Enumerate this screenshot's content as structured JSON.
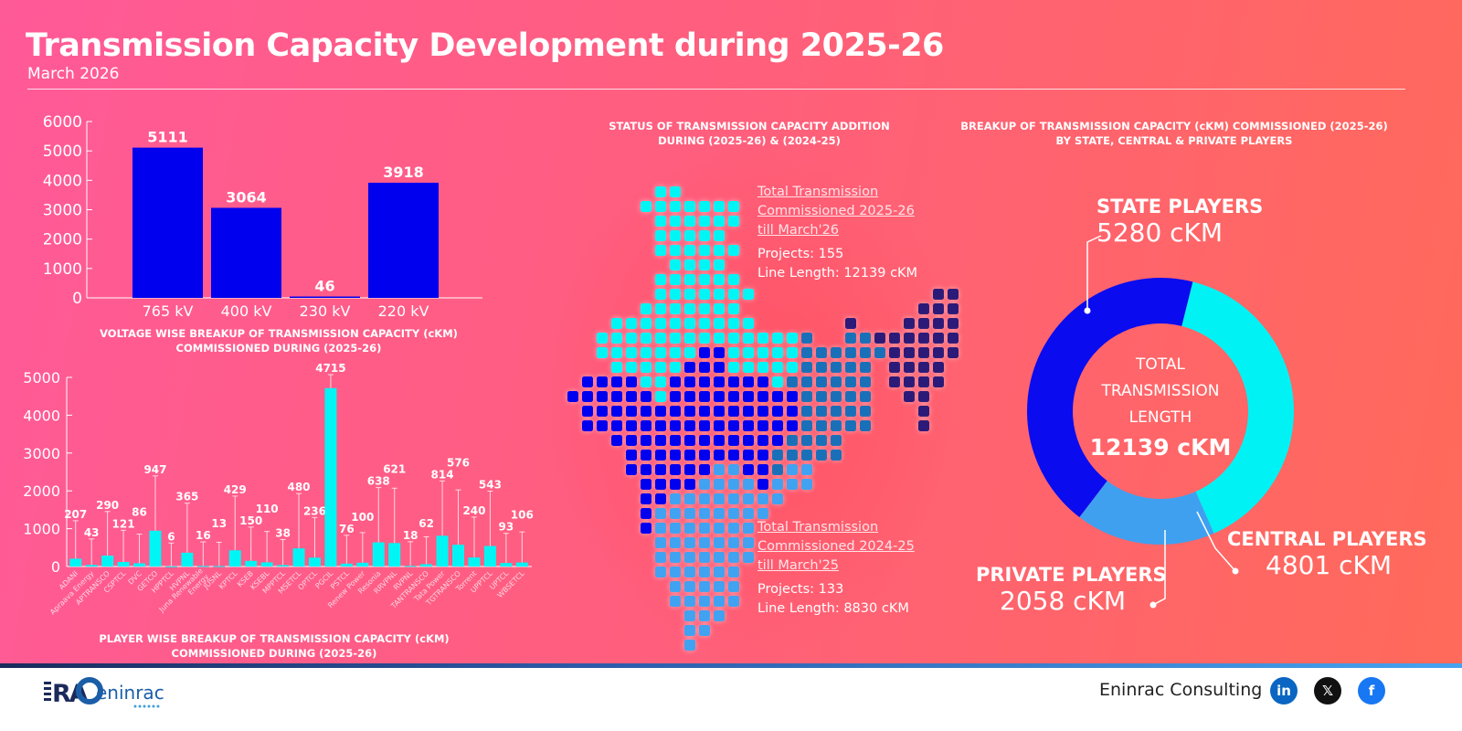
{
  "header": {
    "title": "Transmission Capacity Development during 2025-26",
    "subtitle": "March 2026"
  },
  "colors": {
    "bar_voltage": "#0000ee",
    "bar_player": "#00f5f5",
    "state": "#0b0bef",
    "central": "#00f2f5",
    "private": "#3fa0f0"
  },
  "chart_data": [
    {
      "type": "bar",
      "title": "VOLTAGE WISE BREAKUP OF TRANSMISSION CAPACITY (cKM) COMMISSIONED DURING (2025-26)",
      "categories": [
        "765 kV",
        "400 kV",
        "230 kV",
        "220 kV"
      ],
      "values": [
        5111,
        3064,
        46,
        3918
      ],
      "ylim": [
        0,
        6000
      ],
      "yticks": [
        0,
        1000,
        2000,
        3000,
        4000,
        5000,
        6000
      ],
      "grid": false
    },
    {
      "type": "bar",
      "title": "PLAYER WISE BREAKUP OF TRANSMISSION CAPACITY (cKM) COMMISSIONED DURING (2025-26)",
      "categories": [
        "ADANI",
        "Apraava Energy",
        "APTRANSCO",
        "CSPTCL",
        "DVC",
        "GETCO",
        "HPPTCL",
        "HVPNL",
        "Juna Renewable Energy",
        "JUSNL",
        "KPTCL",
        "KSEB",
        "KSEBL",
        "MPPTCL",
        "MSETCL",
        "OPTCL",
        "PGCIL",
        "PSTCL",
        "Renew Power",
        "Resonia",
        "RRVPNL",
        "RVPNL",
        "TANTRANSCO",
        "Tata Power",
        "TGTRANSCO",
        "Torrent",
        "UPPTCL",
        "UPTCL",
        "WBSETCL"
      ],
      "values": [
        207,
        43,
        290,
        121,
        86,
        947,
        6,
        365,
        16,
        13,
        429,
        150,
        110,
        38,
        480,
        236,
        4715,
        76,
        100,
        638,
        621,
        18,
        62,
        814,
        576,
        240,
        543,
        93,
        106
      ],
      "ylim": [
        0,
        5000
      ],
      "yticks": [
        0,
        1000,
        2000,
        3000,
        4000,
        5000
      ],
      "grid": false,
      "error_bars": true
    },
    {
      "type": "pie",
      "title": "BREAKUP OF TRANSMISSION CAPACITY (cKM) COMMISSIONED (2025-26) BY STATE, CENTRAL & PRIVATE PLAYERS",
      "donut": true,
      "slices": [
        {
          "name": "CENTRAL PLAYERS",
          "value": 4801,
          "label": "4801 cKM"
        },
        {
          "name": "PRIVATE PLAYERS",
          "value": 2058,
          "label": "2058 cKM"
        },
        {
          "name": "STATE PLAYERS",
          "value": 5280,
          "label": "5280 cKM"
        }
      ],
      "center_text": [
        "TOTAL",
        "TRANSMISSION",
        "LENGTH"
      ],
      "center_value": "12139 cKM"
    }
  ],
  "status": {
    "title_line1": "STATUS OF TRANSMISSION CAPACITY ADDITION",
    "title_line2": "DURING (2025-26) & (2024-25)",
    "current": {
      "heading_line1": "Total Transmission",
      "heading_line2": "Commissioned 2025-26",
      "heading_line3": "till March'26",
      "projects": "Projects: 155",
      "length": "Line Length: 12139 cKM"
    },
    "previous": {
      "heading_line1": "Total Transmission",
      "heading_line2": "Commissioned 2024-25",
      "heading_line3": "till March'25",
      "projects": "Projects: 133",
      "length": "Line Length: 8830 cKM"
    }
  },
  "captions": {
    "voltage_line1": "VOLTAGE WISE BREAKUP OF TRANSMISSION CAPACITY (cKM)",
    "voltage_line2": "COMMISSIONED DURING (2025-26)",
    "player_line1": "PLAYER WISE BREAKUP OF TRANSMISSION CAPACITY (cKM)",
    "player_line2": "COMMISSIONED DURING (2025-26)",
    "donut_line1": "BREAKUP OF TRANSMISSION CAPACITY (cKM) COMMISSIONED (2025-26)",
    "donut_line2": "BY STATE, CENTRAL & PRIVATE PLAYERS"
  },
  "footer": {
    "company": "Eninrac Consulting",
    "logo_text": "RAC eninrac",
    "social": [
      {
        "name": "linkedin",
        "glyph": "in",
        "color": "#0a66c2"
      },
      {
        "name": "x",
        "glyph": "𝕏",
        "color": "#111111"
      },
      {
        "name": "facebook",
        "glyph": "f",
        "color": "#1877f2"
      }
    ]
  }
}
